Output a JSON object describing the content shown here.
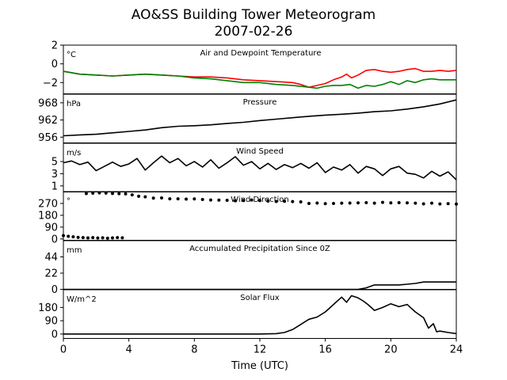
{
  "title": "AO&SS Building Tower Meteorogram",
  "subtitle": "2007-02-26",
  "xlabel": "Time (UTC)",
  "colors": {
    "temperature": "#ff0000",
    "dewpoint": "#008000",
    "default": "#000000"
  },
  "chart_data": [
    {
      "type": "line",
      "panel_title": "Air and Dewpoint Temperature",
      "unit_label": "°C",
      "xlim": [
        0,
        24
      ],
      "xticks": [
        "0",
        "4",
        "8",
        "12",
        "16",
        "20",
        "24"
      ],
      "ylim": [
        -3.2,
        2
      ],
      "yticks": [
        2,
        0,
        -2
      ],
      "series": [
        {
          "color": "temperature",
          "x": [
            0,
            1,
            2,
            3,
            4,
            5,
            6,
            7,
            8,
            9,
            10,
            11,
            12,
            13,
            14,
            14.5,
            15,
            15.5,
            16,
            16.5,
            17,
            17.3,
            17.6,
            18,
            18.5,
            19,
            19.5,
            20,
            20.5,
            21,
            21.5,
            22,
            22.5,
            23,
            23.5,
            24
          ],
          "y": [
            -0.8,
            -1.1,
            -1.2,
            -1.3,
            -1.2,
            -1.1,
            -1.2,
            -1.3,
            -1.4,
            -1.4,
            -1.5,
            -1.7,
            -1.8,
            -1.9,
            -2.0,
            -2.2,
            -2.5,
            -2.3,
            -2.1,
            -1.7,
            -1.4,
            -1.1,
            -1.5,
            -1.2,
            -0.7,
            -0.6,
            -0.8,
            -0.9,
            -0.8,
            -0.6,
            -0.5,
            -0.8,
            -0.8,
            -0.7,
            -0.8,
            -0.7
          ]
        },
        {
          "color": "dewpoint",
          "x": [
            0,
            1,
            2,
            3,
            4,
            5,
            6,
            7,
            8,
            9,
            10,
            11,
            12,
            13,
            14,
            15,
            15.5,
            16,
            16.5,
            17,
            17.5,
            18,
            18.5,
            19,
            19.5,
            20,
            20.5,
            21,
            21.5,
            22,
            22.5,
            23,
            23.5,
            24
          ],
          "y": [
            -0.8,
            -1.1,
            -1.2,
            -1.3,
            -1.2,
            -1.1,
            -1.2,
            -1.3,
            -1.5,
            -1.6,
            -1.8,
            -2.0,
            -2.0,
            -2.2,
            -2.3,
            -2.5,
            -2.6,
            -2.4,
            -2.3,
            -2.3,
            -2.2,
            -2.6,
            -2.3,
            -2.4,
            -2.2,
            -1.9,
            -2.2,
            -1.8,
            -2.0,
            -1.7,
            -1.6,
            -1.7,
            -1.7,
            -1.7
          ]
        }
      ]
    },
    {
      "type": "line",
      "panel_title": "Pressure",
      "unit_label": "hPa",
      "xlim": [
        0,
        24
      ],
      "ylim": [
        954,
        971
      ],
      "yticks": [
        968,
        962,
        956
      ],
      "series": [
        {
          "color": "default",
          "x": [
            0,
            1,
            2,
            3,
            4,
            5,
            6,
            7,
            8,
            9,
            10,
            11,
            12,
            13,
            14,
            15,
            16,
            17,
            18,
            19,
            20,
            21,
            22,
            23,
            24
          ],
          "y": [
            956.5,
            956.8,
            957,
            957.5,
            958,
            958.5,
            959.3,
            959.8,
            960,
            960.3,
            960.8,
            961.2,
            961.8,
            962.3,
            962.8,
            963.3,
            963.7,
            964,
            964.4,
            964.9,
            965.2,
            965.8,
            966.6,
            967.6,
            969
          ]
        }
      ]
    },
    {
      "type": "line",
      "panel_title": "Wind Speed",
      "unit_label": "m/s",
      "xlim": [
        0,
        24
      ],
      "ylim": [
        0,
        8
      ],
      "yticks": [
        5,
        3,
        1
      ],
      "series": [
        {
          "color": "default",
          "x": [
            0,
            0.5,
            1,
            1.5,
            2,
            2.5,
            3,
            3.5,
            4,
            4.5,
            5,
            5.5,
            6,
            6.5,
            7,
            7.5,
            8,
            8.5,
            9,
            9.5,
            10,
            10.5,
            11,
            11.5,
            12,
            12.5,
            13,
            13.5,
            14,
            14.5,
            15,
            15.5,
            16,
            16.5,
            17,
            17.5,
            18,
            18.5,
            19,
            19.5,
            20,
            20.5,
            21,
            21.5,
            22,
            22.5,
            23,
            23.5,
            24
          ],
          "y": [
            4.8,
            5.1,
            4.5,
            4.9,
            3.5,
            4.2,
            4.9,
            4.2,
            4.6,
            5.5,
            3.6,
            4.8,
            5.9,
            4.8,
            5.5,
            4.3,
            5.0,
            4.1,
            5.3,
            3.9,
            4.8,
            5.8,
            4.4,
            5.0,
            3.8,
            4.7,
            3.7,
            4.5,
            4.0,
            4.7,
            3.9,
            4.8,
            3.2,
            4.1,
            3.6,
            4.5,
            3.1,
            4.2,
            3.8,
            2.7,
            3.8,
            4.2,
            3.1,
            2.9,
            2.3,
            3.4,
            2.6,
            3.3,
            2.0
          ]
        }
      ]
    },
    {
      "type": "scatter",
      "panel_title": "Wind Direction",
      "unit_label": "°",
      "xlim": [
        0,
        24
      ],
      "ylim": [
        -10,
        360
      ],
      "yticks": [
        270,
        180,
        90,
        0
      ],
      "series": [
        {
          "color": "default",
          "x": [
            1.4,
            1.8,
            2.2,
            2.6,
            3,
            3.4,
            3.8,
            4.2,
            4.6,
            5,
            5.5,
            6,
            6.5,
            7,
            7.5,
            8,
            8.5,
            9,
            9.5,
            10,
            10.5,
            11,
            11.5,
            12,
            12.5,
            13,
            13.5,
            14,
            14.5,
            15,
            15.5,
            16,
            16.5,
            17,
            17.5,
            18,
            18.5,
            19,
            19.5,
            20,
            20.5,
            21,
            21.5,
            22,
            22.5,
            23,
            23.5,
            24
          ],
          "y": [
            345,
            348,
            350,
            349,
            346,
            344,
            343,
            335,
            325,
            320,
            310,
            312,
            305,
            305,
            303,
            304,
            300,
            296,
            295,
            294,
            290,
            292,
            296,
            292,
            288,
            285,
            286,
            284,
            282,
            270,
            273,
            268,
            270,
            272,
            273,
            274,
            276,
            272,
            278,
            274,
            276,
            274,
            272,
            267,
            272,
            266,
            268,
            265
          ]
        },
        {
          "color": "default",
          "x": [
            0,
            0.3,
            0.6,
            0.9,
            1.2,
            1.5,
            1.8,
            2.1,
            2.4,
            2.7,
            3,
            3.3,
            3.6
          ],
          "y": [
            25,
            20,
            16,
            12,
            10,
            8,
            10,
            7,
            9,
            6,
            8,
            10,
            9
          ]
        }
      ]
    },
    {
      "type": "line",
      "panel_title": "Accumulated Precipitation Since 0Z",
      "unit_label": "mm",
      "xlim": [
        0,
        24
      ],
      "ylim": [
        0,
        66
      ],
      "yticks": [
        44,
        22,
        0
      ],
      "series": [
        {
          "color": "default",
          "x": [
            0,
            18,
            18.5,
            19,
            20.5,
            21,
            21.5,
            22,
            24
          ],
          "y": [
            0,
            0,
            2,
            6,
            6,
            7,
            8,
            10,
            10
          ]
        }
      ]
    },
    {
      "type": "line",
      "panel_title": "Solar Flux",
      "unit_label": "W/m^2",
      "xlim": [
        0,
        24
      ],
      "ylim": [
        -30,
        300
      ],
      "yticks": [
        180,
        90,
        0
      ],
      "series": [
        {
          "color": "default",
          "x": [
            0,
            4,
            8,
            12,
            13,
            13.5,
            14,
            14.5,
            15,
            15.5,
            16,
            16.5,
            17,
            17.3,
            17.6,
            18,
            18.3,
            18.6,
            19,
            19.5,
            20,
            20.5,
            21,
            21.2,
            21.5,
            22,
            22.3,
            22.6,
            22.8,
            23,
            23.5,
            24
          ],
          "y": [
            0,
            0,
            0,
            0,
            3,
            10,
            30,
            65,
            100,
            115,
            150,
            200,
            250,
            215,
            260,
            245,
            225,
            200,
            160,
            180,
            205,
            185,
            200,
            180,
            150,
            110,
            40,
            70,
            15,
            20,
            10,
            3
          ]
        }
      ]
    }
  ]
}
